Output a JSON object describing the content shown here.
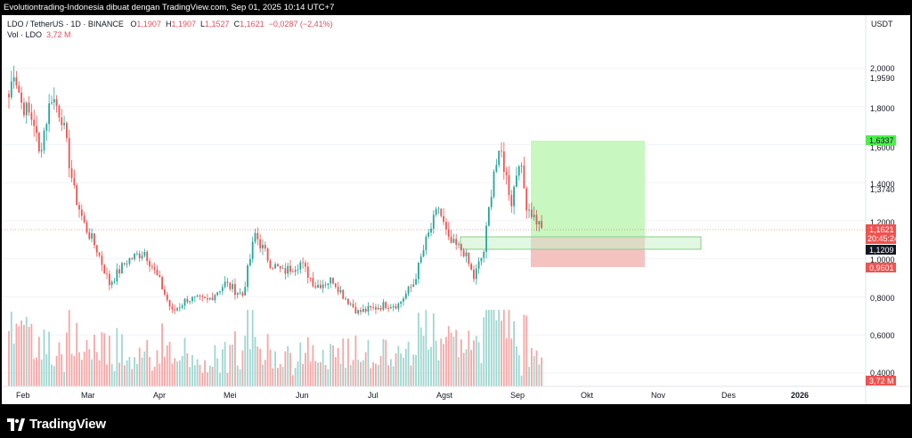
{
  "watermark_text": "Evolutiontrading-Indonesia dibuat dengan TradingView.com, Sep 01, 2025 10:14 UTC+7",
  "legend": {
    "symbol": "LDO / TetherUS · 1D · BINANCE",
    "open_label": "O",
    "open": "1,1907",
    "high_label": "H",
    "high": "1,1907",
    "low_label": "L",
    "low": "1,1527",
    "close_label": "C",
    "close": "1,1621",
    "change": "−0,0287 (−2,41%)",
    "vol_label": "Vol · LDO",
    "vol_value": "3,72 M"
  },
  "price_axis": {
    "currency": "USDT",
    "ticks": [
      "2,0000",
      "1,9590",
      "1,8000",
      "1,6000",
      "1,4000",
      "1,3740",
      "1,2000",
      "1,0000",
      "0,8000",
      "0,6000",
      "0,4000"
    ],
    "badges": {
      "target": "1,6337",
      "last_price": "1,1621",
      "countdown": "20:45:24",
      "entry": "1,1209",
      "stop": "0,9601",
      "volume": "3,72 M"
    }
  },
  "time_axis": {
    "labels": [
      "Feb",
      "Mar",
      "Apr",
      "Mei",
      "Jun",
      "Jul",
      "Agst",
      "Sep",
      "Okt",
      "Nov",
      "Des",
      "2026"
    ]
  },
  "brand": {
    "name": "TradingView"
  },
  "colors": {
    "up": "#26a69a",
    "down": "#ef5350",
    "vol_up": "#9fd6d0",
    "vol_down": "#f4a7a6",
    "target_zone": "#c8f7c0",
    "stop_zone": "#f5c2c2",
    "badge_target": "#4cf04c",
    "badge_last": "#ef5350",
    "badge_entry": "#131722"
  },
  "chart_data": {
    "type": "candlestick",
    "symbol": "LDO / TetherUS",
    "interval": "1D",
    "exchange": "BINANCE",
    "x_range": [
      "2025-02",
      "2026-01"
    ],
    "y_range": [
      0.35,
      2.15
    ],
    "volume_y_range": [
      0,
      11
    ],
    "last_price": 1.1621,
    "entry": 1.1209,
    "target": 1.6337,
    "stop": 0.9601,
    "anchor_prices": [
      {
        "date": "2025-02-01",
        "price": 1.85
      },
      {
        "date": "2025-02-03",
        "price": 2.0
      },
      {
        "date": "2025-02-06",
        "price": 1.82
      },
      {
        "date": "2025-02-11",
        "price": 1.72
      },
      {
        "date": "2025-02-13",
        "price": 1.55
      },
      {
        "date": "2025-02-18",
        "price": 1.86
      },
      {
        "date": "2025-02-22",
        "price": 1.75
      },
      {
        "date": "2025-02-27",
        "price": 1.35
      },
      {
        "date": "2025-03-03",
        "price": 1.18
      },
      {
        "date": "2025-03-08",
        "price": 1.05
      },
      {
        "date": "2025-03-13",
        "price": 0.87
      },
      {
        "date": "2025-03-20",
        "price": 0.99
      },
      {
        "date": "2025-03-27",
        "price": 1.04
      },
      {
        "date": "2025-04-02",
        "price": 0.88
      },
      {
        "date": "2025-04-07",
        "price": 0.72
      },
      {
        "date": "2025-04-13",
        "price": 0.79
      },
      {
        "date": "2025-04-21",
        "price": 0.78
      },
      {
        "date": "2025-04-28",
        "price": 0.87
      },
      {
        "date": "2025-05-05",
        "price": 0.81
      },
      {
        "date": "2025-05-10",
        "price": 1.13
      },
      {
        "date": "2025-05-16",
        "price": 0.98
      },
      {
        "date": "2025-05-21",
        "price": 0.93
      },
      {
        "date": "2025-05-28",
        "price": 0.98
      },
      {
        "date": "2025-06-03",
        "price": 0.86
      },
      {
        "date": "2025-06-10",
        "price": 0.89
      },
      {
        "date": "2025-06-14",
        "price": 0.81
      },
      {
        "date": "2025-06-20",
        "price": 0.72
      },
      {
        "date": "2025-06-26",
        "price": 0.74
      },
      {
        "date": "2025-07-01",
        "price": 0.76
      },
      {
        "date": "2025-07-06",
        "price": 0.76
      },
      {
        "date": "2025-07-12",
        "price": 0.87
      },
      {
        "date": "2025-07-17",
        "price": 1.09
      },
      {
        "date": "2025-07-22",
        "price": 1.27
      },
      {
        "date": "2025-07-26",
        "price": 1.09
      },
      {
        "date": "2025-08-01",
        "price": 1.04
      },
      {
        "date": "2025-08-05",
        "price": 0.9
      },
      {
        "date": "2025-08-09",
        "price": 1.04
      },
      {
        "date": "2025-08-13",
        "price": 1.47
      },
      {
        "date": "2025-08-16",
        "price": 1.55
      },
      {
        "date": "2025-08-20",
        "price": 1.3
      },
      {
        "date": "2025-08-23",
        "price": 1.53
      },
      {
        "date": "2025-08-26",
        "price": 1.29
      },
      {
        "date": "2025-08-29",
        "price": 1.22
      },
      {
        "date": "2025-09-01",
        "price": 1.1621
      }
    ]
  }
}
